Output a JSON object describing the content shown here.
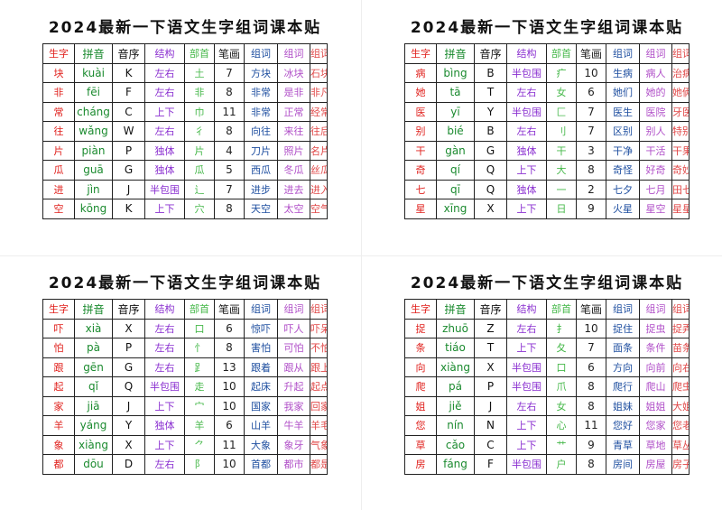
{
  "sections": [
    {
      "title": "2024最新一下语文生字组词课本贴",
      "header": [
        "生字",
        "拼音",
        "音序",
        "结构",
        "部首",
        "笔画",
        "组词",
        "组词",
        "组词"
      ],
      "rows": [
        [
          "块",
          "kuài",
          "K",
          "左右",
          "土",
          "7",
          "方块",
          "冰块",
          "石块"
        ],
        [
          "非",
          "fēi",
          "F",
          "左右",
          "非",
          "8",
          "非常",
          "是非",
          "非凡"
        ],
        [
          "常",
          "cháng",
          "C",
          "上下",
          "巾",
          "11",
          "非常",
          "正常",
          "经常"
        ],
        [
          "往",
          "wǎng",
          "W",
          "左右",
          "彳",
          "8",
          "向往",
          "来往",
          "往后"
        ],
        [
          "片",
          "piàn",
          "P",
          "独体",
          "片",
          "4",
          "刀片",
          "照片",
          "名片"
        ],
        [
          "瓜",
          "guā",
          "G",
          "独体",
          "瓜",
          "5",
          "西瓜",
          "冬瓜",
          "丝瓜"
        ],
        [
          "进",
          "jìn",
          "J",
          "半包围",
          "辶",
          "7",
          "进步",
          "进去",
          "进入"
        ],
        [
          "空",
          "kōng",
          "K",
          "上下",
          "穴",
          "8",
          "天空",
          "太空",
          "空气"
        ]
      ]
    },
    {
      "title": "2024最新一下语文生字组词课本贴",
      "header": [
        "生字",
        "拼音",
        "音序",
        "结构",
        "部首",
        "笔画",
        "组词",
        "组词",
        "组词"
      ],
      "rows": [
        [
          "病",
          "bìng",
          "B",
          "半包围",
          "疒",
          "10",
          "生病",
          "病人",
          "治病"
        ],
        [
          "她",
          "tā",
          "T",
          "左右",
          "女",
          "6",
          "她们",
          "她的",
          "她俩"
        ],
        [
          "医",
          "yī",
          "Y",
          "半包围",
          "匚",
          "7",
          "医生",
          "医院",
          "牙医"
        ],
        [
          "别",
          "bié",
          "B",
          "左右",
          "刂",
          "7",
          "区别",
          "别人",
          "特别"
        ],
        [
          "干",
          "gàn",
          "G",
          "独体",
          "干",
          "3",
          "干净",
          "干活",
          "干果"
        ],
        [
          "奇",
          "qí",
          "Q",
          "上下",
          "大",
          "8",
          "奇怪",
          "好奇",
          "奇妙"
        ],
        [
          "七",
          "qī",
          "Q",
          "独体",
          "一",
          "2",
          "七夕",
          "七月",
          "田七"
        ],
        [
          "星",
          "xīng",
          "X",
          "上下",
          "日",
          "9",
          "火星",
          "星空",
          "星星"
        ]
      ]
    },
    {
      "title": "2024最新一下语文生字组词课本贴",
      "header": [
        "生字",
        "拼音",
        "音序",
        "结构",
        "部首",
        "笔画",
        "组词",
        "组词",
        "组词"
      ],
      "rows": [
        [
          "吓",
          "xià",
          "X",
          "左右",
          "口",
          "6",
          "惊吓",
          "吓人",
          "吓呆"
        ],
        [
          "怕",
          "pà",
          "P",
          "左右",
          "忄",
          "8",
          "害怕",
          "可怕",
          "不怕"
        ],
        [
          "跟",
          "gēn",
          "G",
          "左右",
          "𧾷",
          "13",
          "跟着",
          "跟从",
          "跟上"
        ],
        [
          "起",
          "qǐ",
          "Q",
          "半包围",
          "走",
          "10",
          "起床",
          "升起",
          "起点"
        ],
        [
          "家",
          "jiā",
          "J",
          "上下",
          "宀",
          "10",
          "国家",
          "我家",
          "回家"
        ],
        [
          "羊",
          "yáng",
          "Y",
          "独体",
          "羊",
          "6",
          "山羊",
          "牛羊",
          "羊毛"
        ],
        [
          "象",
          "xiàng",
          "X",
          "上下",
          "⺈",
          "11",
          "大象",
          "象牙",
          "气象"
        ],
        [
          "都",
          "dōu",
          "D",
          "左右",
          "阝",
          "10",
          "首都",
          "都市",
          "都是"
        ]
      ]
    },
    {
      "title": "2024最新一下语文生字组词课本贴",
      "header": [
        "生字",
        "拼音",
        "音序",
        "结构",
        "部首",
        "笔画",
        "组词",
        "组词",
        "组词"
      ],
      "rows": [
        [
          "捉",
          "zhuō",
          "Z",
          "左右",
          "扌",
          "10",
          "捉住",
          "捉虫",
          "捉弄"
        ],
        [
          "条",
          "tiáo",
          "T",
          "上下",
          "夂",
          "7",
          "面条",
          "条件",
          "苗条"
        ],
        [
          "向",
          "xiàng",
          "X",
          "半包围",
          "口",
          "6",
          "方向",
          "向前",
          "向右"
        ],
        [
          "爬",
          "pá",
          "P",
          "半包围",
          "爪",
          "8",
          "爬行",
          "爬山",
          "爬虫"
        ],
        [
          "姐",
          "jiě",
          "J",
          "左右",
          "女",
          "8",
          "姐妹",
          "姐姐",
          "大姐"
        ],
        [
          "您",
          "nín",
          "N",
          "上下",
          "心",
          "11",
          "您好",
          "您家",
          "您老"
        ],
        [
          "草",
          "cǎo",
          "C",
          "上下",
          "艹",
          "9",
          "青草",
          "草地",
          "草丛"
        ],
        [
          "房",
          "fáng",
          "F",
          "半包围",
          "户",
          "8",
          "房间",
          "房屋",
          "房子"
        ]
      ]
    }
  ]
}
